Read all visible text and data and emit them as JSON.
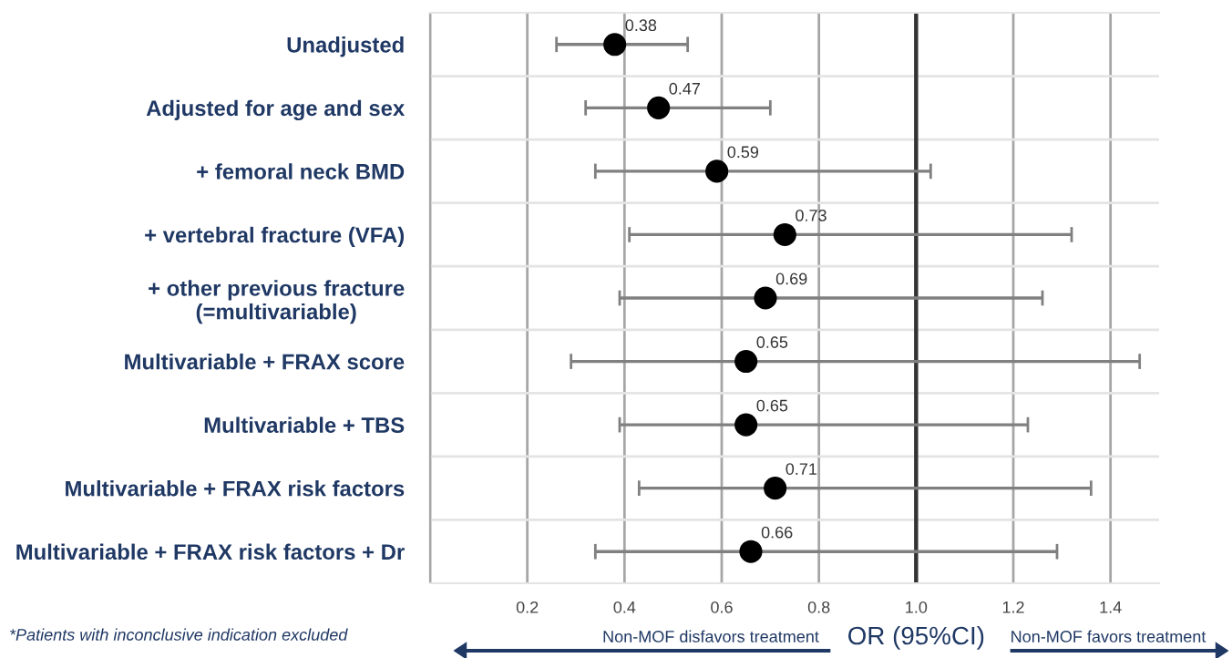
{
  "chart_data": {
    "type": "scatter",
    "orientation": "horizontal",
    "categories": [
      "Unadjusted",
      "Adjusted for age and sex",
      "+ femoral neck BMD",
      "+ vertebral fracture (VFA)",
      "+ other previous fracture\n(=multivariable)",
      "Multivariable + FRAX score",
      "Multivariable + TBS",
      "Multivariable + FRAX risk factors",
      "Multivariable + FRAX risk factors + Dr"
    ],
    "values": [
      0.38,
      0.47,
      0.59,
      0.73,
      0.69,
      0.65,
      0.65,
      0.71,
      0.66
    ],
    "errors": [
      [
        0.26,
        0.53
      ],
      [
        0.32,
        0.7
      ],
      [
        0.34,
        1.03
      ],
      [
        0.41,
        1.32
      ],
      [
        0.39,
        1.26
      ],
      [
        0.29,
        1.46
      ],
      [
        0.39,
        1.23
      ],
      [
        0.43,
        1.36
      ],
      [
        0.34,
        1.29
      ]
    ],
    "color": "#000000",
    "marker": "circle",
    "data_labels": true,
    "xlabel": "OR (95%CI)",
    "xlim": [
      0,
      1.5
    ],
    "xticks": [
      {
        "value": 0,
        "label": null
      },
      0.2,
      0.4,
      0.6,
      0.8,
      {
        "value": 1.0,
        "label": "1.0"
      },
      1.2,
      1.4
    ],
    "grid": true,
    "ref_lines": [
      {
        "axis": "x",
        "value": 1.0,
        "label": null,
        "color": "#333333"
      }
    ],
    "annotations": [
      "Non-MOF disfavors treatment",
      "Non-MOF favors treatment",
      "*Patients with inconclusive indication excluded"
    ]
  }
}
